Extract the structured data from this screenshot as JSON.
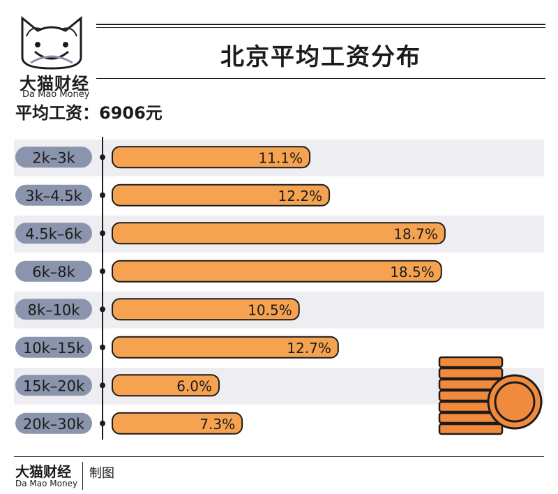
{
  "brand": {
    "name_cn": "大猫财经",
    "name_en": "Da Mao Money"
  },
  "title": "北京平均工资分布",
  "average_label": "平均工资：6906元",
  "footer": {
    "brand_cn": "大猫财经",
    "brand_en": "Da Mao Money",
    "credit": "制图"
  },
  "colors": {
    "bar_fill": "#F5A251",
    "bar_stroke": "#1B1B1B",
    "label_pill": "#8A94AC",
    "stripe": "#EEEEF2",
    "coin": "#F08A3C"
  },
  "chart_data": {
    "type": "bar",
    "orientation": "horizontal",
    "categories": [
      "2k–3k",
      "3k–4.5k",
      "4.5k–6k",
      "6k–8k",
      "8k–10k",
      "10k–15k",
      "15k–20k",
      "20k–30k"
    ],
    "values": [
      11.1,
      12.2,
      18.7,
      18.5,
      10.5,
      12.7,
      6.0,
      7.3
    ],
    "value_labels": [
      "11.1%",
      "12.2%",
      "18.7%",
      "18.5%",
      "10.5%",
      "12.7%",
      "6.0%",
      "7.3%"
    ],
    "unit": "%",
    "title": "北京平均工资分布"
  }
}
